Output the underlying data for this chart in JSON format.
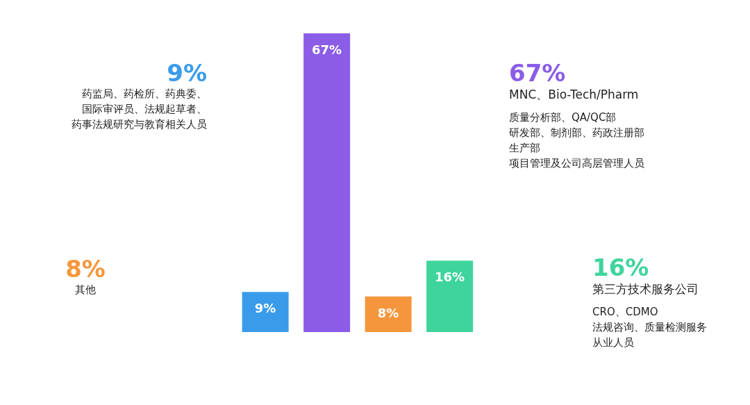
{
  "chart_data": {
    "type": "bar",
    "categories": [
      null,
      null,
      null,
      null
    ],
    "values": [
      9,
      67,
      8,
      16
    ],
    "colors": [
      "#3a9bea",
      "#8b5ce6",
      "#f5963c",
      "#3fd49c"
    ],
    "value_labels": [
      "9%",
      "67%",
      "8%",
      "16%"
    ],
    "annotations": [
      "9%",
      "药监局、药检所、药典委、",
      "国际审评员、法规起草者、",
      "药事法规研究与教育相关人员",
      "67%",
      "MNC、Bio-Tech/Pharm",
      "质量分析部、QA/QC部",
      "研发部、制剂部、药政注册部",
      "生产部",
      "项目管理及公司高层管理人员",
      "8%",
      "其他",
      "16%",
      "第三方技术服务公司",
      "CRO、CDMO",
      "法规咨询、质量检测服务",
      "从业人员"
    ]
  }
}
